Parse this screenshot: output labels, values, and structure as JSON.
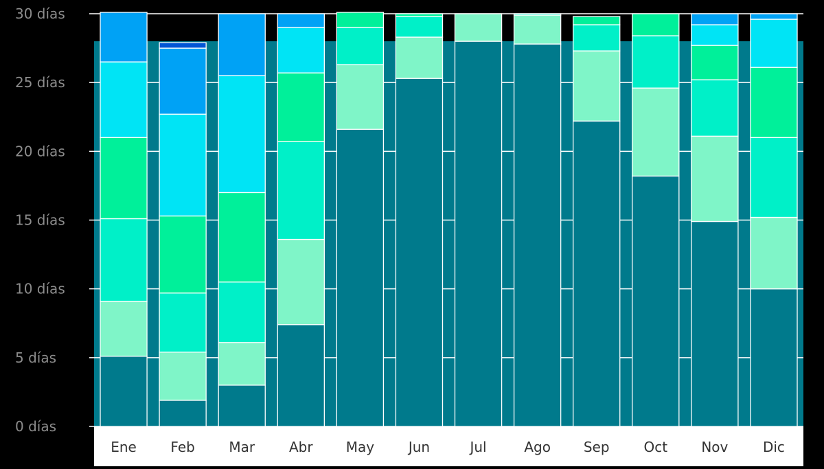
{
  "colors": {
    "background": "#000000",
    "plot_band": "#007a8c",
    "grid_line": "#ffffff",
    "axis_label_area": "#ffffff",
    "ytick_text": "#8c8c8c",
    "xtick_text": "#333333",
    "segment_border": "#ffffff"
  },
  "chart_data": {
    "type": "bar",
    "stacked": true,
    "categories": [
      "Ene",
      "Feb",
      "Mar",
      "Abr",
      "May",
      "Jun",
      "Jul",
      "Ago",
      "Sep",
      "Oct",
      "Nov",
      "Dic"
    ],
    "ylim": [
      0,
      30
    ],
    "yticks": [
      {
        "value": 0,
        "label": "0 días"
      },
      {
        "value": 5,
        "label": "5 días"
      },
      {
        "value": 10,
        "label": "10 días"
      },
      {
        "value": 15,
        "label": "15 días"
      },
      {
        "value": 20,
        "label": "20 días"
      },
      {
        "value": 25,
        "label": "25 días"
      },
      {
        "value": 30,
        "label": "30 días"
      }
    ],
    "reference_band_days": 28,
    "grid": true,
    "legend": "none",
    "series": [
      {
        "color": "#007a8c",
        "values": [
          5.1,
          1.9,
          3.0,
          7.4,
          21.6,
          25.3,
          28.0,
          27.8,
          22.2,
          18.2,
          14.9,
          10.0
        ]
      },
      {
        "color": "#7ff5c8",
        "values": [
          4.0,
          3.5,
          3.1,
          6.2,
          4.7,
          3.0,
          2.0,
          2.1,
          5.1,
          6.4,
          6.2,
          5.2
        ]
      },
      {
        "color": "#00f0c8",
        "values": [
          6.0,
          4.3,
          4.4,
          7.1,
          2.7,
          1.5,
          0.0,
          0.1,
          1.9,
          3.8,
          4.1,
          5.8
        ]
      },
      {
        "color": "#00f09a",
        "values": [
          5.9,
          5.6,
          6.5,
          5.0,
          1.1,
          0.2,
          0.0,
          0.0,
          0.6,
          1.6,
          2.5,
          5.1
        ]
      },
      {
        "color": "#00e4f5",
        "values": [
          5.5,
          7.4,
          8.5,
          3.3,
          0.0,
          0.0,
          0.0,
          0.0,
          0.0,
          0.0,
          1.5,
          3.5
        ]
      },
      {
        "color": "#00a2f5",
        "values": [
          3.6,
          4.8,
          4.5,
          1.0,
          0.0,
          0.0,
          0.0,
          0.0,
          0.0,
          0.0,
          0.8,
          0.4
        ]
      },
      {
        "color": "#0055d4",
        "values": [
          0.0,
          0.4,
          0.0,
          0.0,
          0.0,
          0.0,
          0.0,
          0.0,
          0.0,
          0.0,
          0.0,
          0.0
        ]
      }
    ]
  }
}
